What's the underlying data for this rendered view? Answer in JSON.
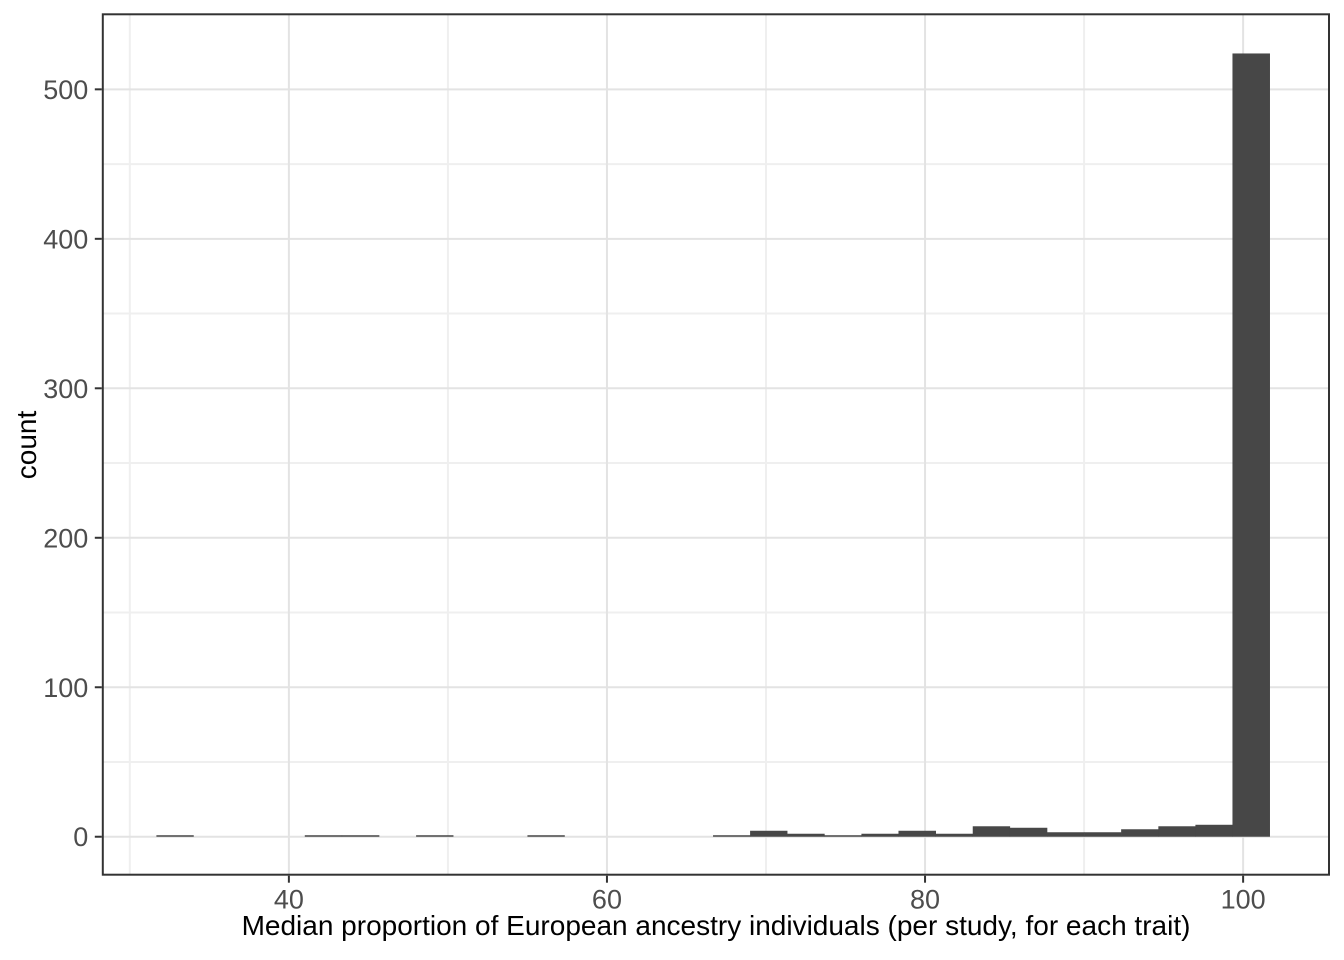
{
  "chart_data": {
    "type": "histogram",
    "title": "",
    "xlabel": "Median proportion of European ancestry individuals (per study, for each trait)",
    "ylabel": "count",
    "xlim": [
      28.3,
      105.4
    ],
    "ylim": [
      -25.4,
      550.2
    ],
    "x_ticks": [
      40,
      60,
      80,
      100
    ],
    "x_minor_ticks": [
      30,
      50,
      70,
      90
    ],
    "y_ticks": [
      0,
      100,
      200,
      300,
      400,
      500
    ],
    "y_minor_ticks": [
      50,
      150,
      250,
      350,
      450
    ],
    "binwidth": 2.33,
    "bins": [
      {
        "x0": 31.67,
        "x1": 34.0,
        "count": 1
      },
      {
        "x0": 41.0,
        "x1": 43.33,
        "count": 1
      },
      {
        "x0": 43.33,
        "x1": 45.67,
        "count": 1
      },
      {
        "x0": 48.0,
        "x1": 50.33,
        "count": 1
      },
      {
        "x0": 55.0,
        "x1": 57.33,
        "count": 1
      },
      {
        "x0": 66.67,
        "x1": 69.0,
        "count": 1
      },
      {
        "x0": 69.0,
        "x1": 71.33,
        "count": 4
      },
      {
        "x0": 71.33,
        "x1": 73.67,
        "count": 2
      },
      {
        "x0": 73.67,
        "x1": 76.0,
        "count": 1
      },
      {
        "x0": 76.0,
        "x1": 78.33,
        "count": 2
      },
      {
        "x0": 78.33,
        "x1": 80.67,
        "count": 4
      },
      {
        "x0": 80.67,
        "x1": 83.0,
        "count": 2
      },
      {
        "x0": 83.0,
        "x1": 85.33,
        "count": 7
      },
      {
        "x0": 85.33,
        "x1": 87.67,
        "count": 6
      },
      {
        "x0": 87.67,
        "x1": 90.0,
        "count": 3
      },
      {
        "x0": 90.0,
        "x1": 92.33,
        "count": 3
      },
      {
        "x0": 92.33,
        "x1": 94.67,
        "count": 5
      },
      {
        "x0": 94.67,
        "x1": 97.0,
        "count": 7
      },
      {
        "x0": 97.0,
        "x1": 99.33,
        "count": 8
      },
      {
        "x0": 99.33,
        "x1": 101.67,
        "count": 524
      }
    ],
    "legend": null,
    "grid": "major+minor",
    "colors": {
      "bar": "#474747",
      "grid_major": "#e3e3e3",
      "grid_minor": "#efefef",
      "panel_border": "#333333",
      "tick_mark": "#333333",
      "tick_label": "#4d4d4d",
      "axis_title": "#000000",
      "background": "#ffffff"
    }
  }
}
